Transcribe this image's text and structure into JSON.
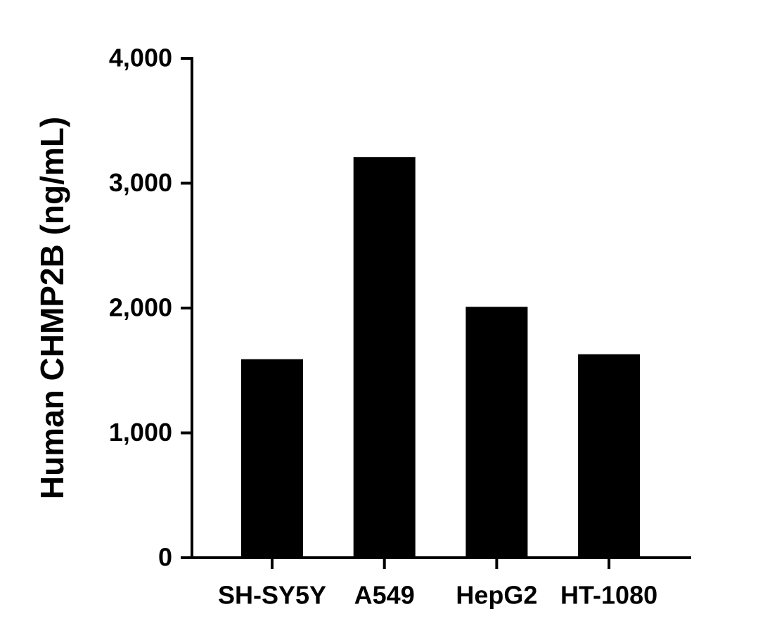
{
  "chart_data": {
    "type": "bar",
    "y_label": "Human CHMP2B (ng/mL)",
    "categories": [
      "SH-SY5Y",
      "A549",
      "HepG2",
      "HT-1080"
    ],
    "values": [
      1590,
      3210,
      2010,
      1630
    ],
    "color": "#000000",
    "ylim": [
      0,
      4000
    ],
    "yticks": [
      0,
      {
        "value": 1000,
        "label": "1,000"
      },
      {
        "value": 2000,
        "label": "2,000"
      },
      {
        "value": 3000,
        "label": "3,000"
      },
      {
        "value": 4000,
        "label": "4,000"
      }
    ],
    "grid": false
  }
}
